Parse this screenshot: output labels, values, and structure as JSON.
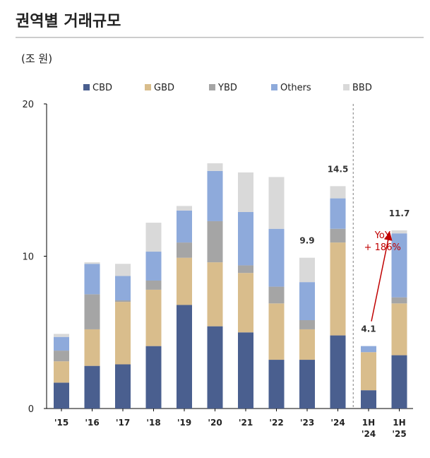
{
  "page": {
    "title": "권역별 거래규모",
    "unit": "(조 원)"
  },
  "chart_data": {
    "type": "bar",
    "stacked": true,
    "categories": [
      [
        "'15"
      ],
      [
        "'16"
      ],
      [
        "'17"
      ],
      [
        "'18"
      ],
      [
        "'19"
      ],
      [
        "'20"
      ],
      [
        "'21"
      ],
      [
        "'22"
      ],
      [
        "'23"
      ],
      [
        "'24"
      ],
      [
        "1H",
        "'24"
      ],
      [
        "1H",
        "'25"
      ]
    ],
    "series": [
      {
        "name": "CBD",
        "color": "#4a5f8f",
        "values": [
          1.7,
          2.8,
          2.9,
          4.1,
          6.8,
          5.4,
          5.0,
          3.2,
          3.2,
          4.8,
          1.2,
          3.5
        ]
      },
      {
        "name": "GBD",
        "color": "#d9bd8c",
        "values": [
          1.4,
          2.4,
          4.1,
          3.7,
          3.1,
          4.2,
          3.9,
          3.7,
          2.0,
          6.1,
          2.5,
          3.4
        ]
      },
      {
        "name": "YBD",
        "color": "#a5a5a5",
        "values": [
          0.7,
          2.3,
          0.1,
          0.6,
          1.0,
          2.7,
          0.5,
          1.1,
          0.6,
          0.9,
          0.0,
          0.4
        ]
      },
      {
        "name": "Others",
        "color": "#8eaadb",
        "values": [
          0.9,
          2.0,
          1.6,
          1.9,
          2.1,
          3.3,
          3.5,
          3.8,
          2.5,
          2.0,
          0.4,
          4.2
        ]
      },
      {
        "name": "BBD",
        "color": "#d9d9d9",
        "values": [
          0.2,
          0.1,
          0.8,
          1.9,
          0.3,
          0.5,
          2.6,
          3.4,
          1.6,
          0.8,
          0.0,
          0.2
        ]
      }
    ],
    "data_labels": [
      {
        "category_index": 8,
        "text": "9.9"
      },
      {
        "category_index": 9,
        "text": "14.5"
      },
      {
        "category_index": 10,
        "text": "4.1"
      },
      {
        "category_index": 11,
        "text": "11.7"
      }
    ],
    "annotation": {
      "lines": [
        "YoY",
        "+ 186%"
      ],
      "color": "#c00000"
    },
    "y_ticks": [
      "0",
      "10",
      "20"
    ],
    "ylim": [
      0,
      20
    ],
    "separator_after_index": 9,
    "legend_position": "top",
    "grid": false
  }
}
